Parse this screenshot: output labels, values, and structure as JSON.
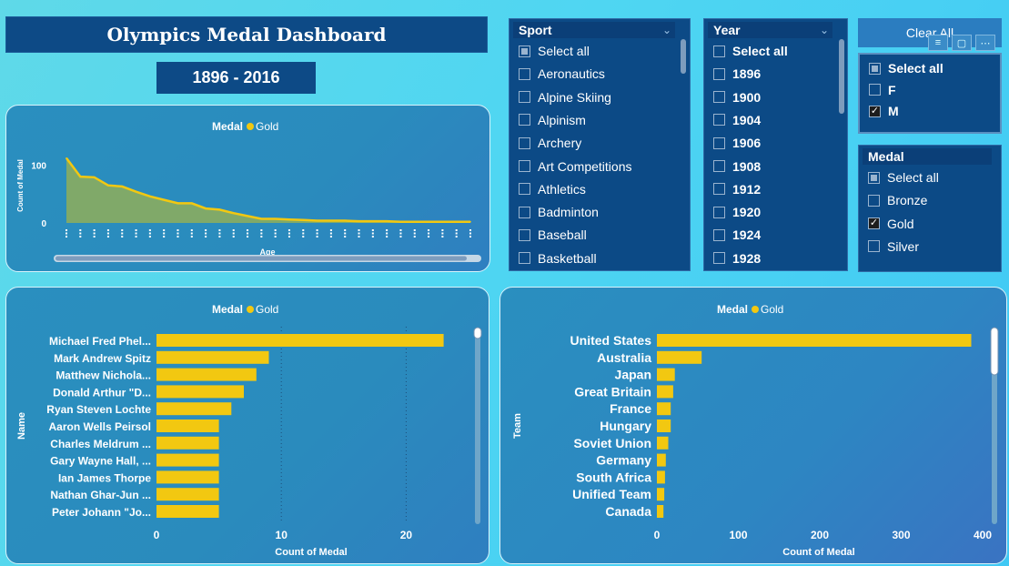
{
  "header": {
    "title": "Olympics Medal Dashboard",
    "years": "1896 - 2016"
  },
  "sport_slicer": {
    "title": "Sport",
    "items": [
      {
        "label": "Select all",
        "state": "partial"
      },
      {
        "label": "Aeronautics",
        "state": "off"
      },
      {
        "label": "Alpine Skiing",
        "state": "off"
      },
      {
        "label": "Alpinism",
        "state": "off"
      },
      {
        "label": "Archery",
        "state": "off"
      },
      {
        "label": "Art Competitions",
        "state": "off"
      },
      {
        "label": "Athletics",
        "state": "off"
      },
      {
        "label": "Badminton",
        "state": "off"
      },
      {
        "label": "Baseball",
        "state": "off"
      },
      {
        "label": "Basketball",
        "state": "off"
      }
    ]
  },
  "year_slicer": {
    "title": "Year",
    "items": [
      {
        "label": "Select all",
        "state": "off"
      },
      {
        "label": "1896",
        "state": "off"
      },
      {
        "label": "1900",
        "state": "off"
      },
      {
        "label": "1904",
        "state": "off"
      },
      {
        "label": "1906",
        "state": "off"
      },
      {
        "label": "1908",
        "state": "off"
      },
      {
        "label": "1912",
        "state": "off"
      },
      {
        "label": "1920",
        "state": "off"
      },
      {
        "label": "1924",
        "state": "off"
      },
      {
        "label": "1928",
        "state": "off"
      }
    ]
  },
  "clear_button": {
    "label": "Clear All"
  },
  "toolbar_icons": [
    "filter-icon",
    "focus-mode-icon",
    "more-options-icon"
  ],
  "sex_slicer": {
    "items": [
      {
        "label": "Select all",
        "state": "partial"
      },
      {
        "label": "F",
        "state": "off"
      },
      {
        "label": "M",
        "state": "checked"
      }
    ]
  },
  "medal_slicer": {
    "title": "Medal",
    "items": [
      {
        "label": "Select all",
        "state": "partial"
      },
      {
        "label": "Bronze",
        "state": "off"
      },
      {
        "label": "Gold",
        "state": "checked"
      },
      {
        "label": "Silver",
        "state": "off"
      }
    ]
  },
  "colors": {
    "gold": "#f2c811",
    "area_fill": "#8fae5a",
    "slicer_bg": "#0c4a86"
  },
  "chart_data": [
    {
      "type": "area",
      "legend_title": "Medal",
      "series": [
        {
          "name": "Gold",
          "values": [
            112,
            80,
            79,
            65,
            63,
            54,
            46,
            40,
            34,
            34,
            25,
            23,
            17,
            12,
            7,
            7,
            6,
            5,
            4,
            4,
            4,
            3,
            3,
            3,
            2,
            2,
            2,
            2,
            2,
            2
          ]
        }
      ],
      "xlabel": "Age",
      "ylabel": "Count of Medal",
      "yticks": [
        0,
        100
      ],
      "ylim": [
        0,
        140
      ],
      "grid": false,
      "legend_position": "top-center"
    },
    {
      "type": "bar",
      "orientation": "horizontal",
      "legend_title": "Medal",
      "series_name": "Gold",
      "categories": [
        "Michael Fred Phel...",
        "Mark Andrew Spitz",
        "Matthew Nichola...",
        "Donald Arthur \"D...",
        "Ryan Steven Lochte",
        "Aaron Wells Peirsol",
        "Charles Meldrum ...",
        "Gary Wayne Hall, ...",
        "Ian James Thorpe",
        "Nathan Ghar-Jun ...",
        "Peter Johann \"Jo..."
      ],
      "values": [
        23,
        9,
        8,
        7,
        6,
        5,
        5,
        5,
        5,
        5,
        5
      ],
      "xlabel": "Count of Medal",
      "ylabel": "Name",
      "xticks": [
        0,
        10,
        20
      ],
      "xlim": [
        0,
        25
      ],
      "grid": true,
      "legend_position": "top-center"
    },
    {
      "type": "bar",
      "orientation": "horizontal",
      "legend_title": "Medal",
      "series_name": "Gold",
      "categories": [
        "United States",
        "Australia",
        "Japan",
        "Great Britain",
        "France",
        "Hungary",
        "Soviet Union",
        "Germany",
        "South Africa",
        "Unified Team",
        "Canada"
      ],
      "values": [
        386,
        55,
        22,
        20,
        17,
        17,
        14,
        11,
        10,
        9,
        8
      ],
      "xlabel": "Count of Medal",
      "ylabel": "Team",
      "xticks": [
        0,
        100,
        200,
        300,
        400
      ],
      "xlim": [
        0,
        400
      ],
      "grid": false,
      "legend_position": "top-center"
    }
  ]
}
